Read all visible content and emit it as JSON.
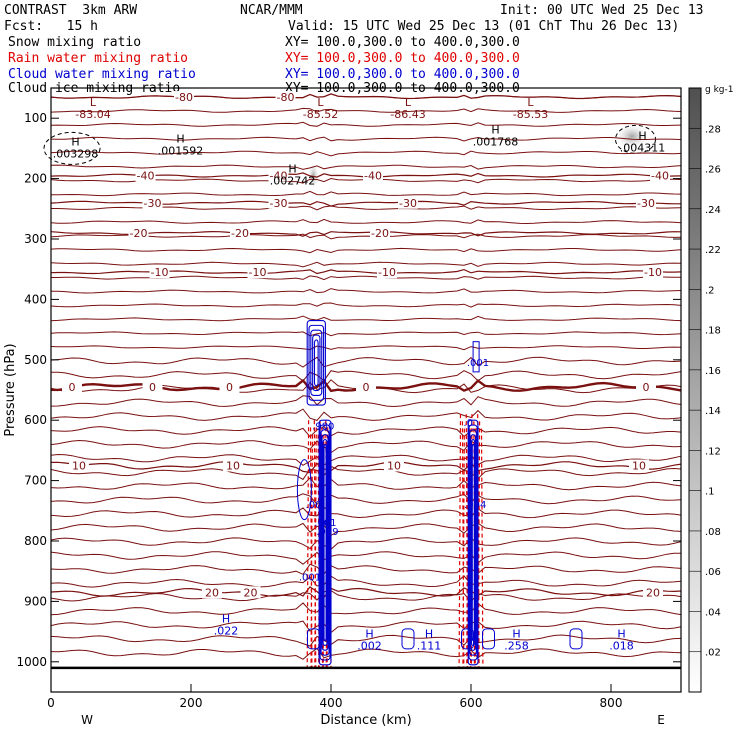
{
  "header": {
    "model": "CONTRAST  3km ARW",
    "center": "NCAR/MMM",
    "init": "Init: 00 UTC Wed 25 Dec 13",
    "fcst": "Fcst:   15 h",
    "valid": "Valid: 15 UTC Wed 25 Dec 13 (01 ChT Thu 26 Dec 13)"
  },
  "legend": [
    {
      "label": "Snow mixing ratio",
      "xy": "XY= 100.0,300.0 to 400.0,300.0",
      "color": "#000000"
    },
    {
      "label": "Rain water mixing ratio",
      "xy": "XY= 100.0,300.0 to 400.0,300.0",
      "color": "#e00000"
    },
    {
      "label": "Cloud water mixing ratio",
      "xy": "XY= 100.0,300.0 to 400.0,300.0",
      "color": "#0000d0"
    },
    {
      "label": "Cloud ice mixing ratio",
      "xy": "XY= 100.0,300.0 to 400.0,300.0",
      "color": "#000000"
    }
  ],
  "chart_data": {
    "type": "contour",
    "xlabel": "Distance (km)",
    "ylabel": "Pressure (hPa)",
    "xlim": [
      0,
      900
    ],
    "ylim": [
      50,
      1050
    ],
    "xticks": [
      0,
      200,
      400,
      600,
      800
    ],
    "yticks": [
      100,
      200,
      300,
      400,
      500,
      600,
      700,
      800,
      900,
      1000
    ],
    "x_end_labels": {
      "left": "W",
      "right": "E"
    },
    "colors": {
      "temperature": "#7a1010",
      "rain": "#e00000",
      "cloud": "#0000d0",
      "axes": "#000000"
    },
    "temperature_contours": [
      {
        "label": "-80",
        "p": 65,
        "label_x": [
          190,
          335
        ]
      },
      {
        "label": "-40",
        "p": 195,
        "label_x": [
          135,
          325,
          460,
          870
        ]
      },
      {
        "label": "-30",
        "p": 240,
        "label_x": [
          145,
          325,
          510,
          850
        ]
      },
      {
        "label": "-20",
        "p": 290,
        "label_x": [
          125,
          270,
          470
        ]
      },
      {
        "label": "-10",
        "p": 355,
        "label_x": [
          155,
          295,
          480,
          860
        ]
      },
      {
        "label": "0",
        "p": 545,
        "label_x": [
          30,
          145,
          255,
          450,
          850
        ]
      },
      {
        "label": "10",
        "p": 675,
        "label_x": [
          40,
          260,
          490,
          840
        ]
      },
      {
        "label": "20",
        "p": 885,
        "label_x": [
          230,
          285,
          860
        ]
      }
    ],
    "extrema": [
      {
        "type": "L",
        "value": "-83.04",
        "x": 60,
        "p": 80,
        "color": "temperature"
      },
      {
        "type": "L",
        "value": "-85.52",
        "x": 385,
        "p": 80,
        "color": "temperature"
      },
      {
        "type": "L",
        "value": "-86.43",
        "x": 510,
        "p": 80,
        "color": "temperature"
      },
      {
        "type": "L",
        "value": "-85.53",
        "x": 685,
        "p": 80,
        "color": "temperature"
      },
      {
        "type": "H",
        "value": ".003298",
        "x": 35,
        "p": 145,
        "color": "black"
      },
      {
        "type": "H",
        "value": ".001592",
        "x": 185,
        "p": 140,
        "color": "black"
      },
      {
        "type": "H",
        "value": ".001768",
        "x": 635,
        "p": 125,
        "color": "black"
      },
      {
        "type": "H",
        "value": ".004311",
        "x": 845,
        "p": 135,
        "color": "black"
      },
      {
        "type": "H",
        "value": ".002742",
        "x": 345,
        "p": 190,
        "color": "black"
      },
      {
        "type": "H",
        "value": ".022",
        "x": 250,
        "p": 935,
        "color": "cloud"
      },
      {
        "type": "H",
        "value": ".002",
        "x": 455,
        "p": 960,
        "color": "cloud"
      },
      {
        "type": "H",
        "value": ".111",
        "x": 540,
        "p": 960,
        "color": "cloud"
      },
      {
        "type": "H",
        "value": ".258",
        "x": 665,
        "p": 960,
        "color": "cloud"
      },
      {
        "type": "H",
        "value": ".018",
        "x": 815,
        "p": 960,
        "color": "cloud"
      }
    ],
    "cloud_labels": [
      {
        "value": ".001",
        "x": 610,
        "p": 510
      },
      {
        "value": ".980",
        "x": 389,
        "p": 615
      },
      {
        "value": ".0",
        "x": 596,
        "p": 610
      },
      {
        "value": ".00",
        "x": 375,
        "p": 745
      },
      {
        "value": ".001",
        "x": 392,
        "p": 775
      },
      {
        "value": ".999",
        "x": 395,
        "p": 790
      },
      {
        "value": ".004",
        "x": 606,
        "p": 745
      },
      {
        "value": ".001",
        "x": 370,
        "p": 865
      }
    ],
    "colorbar": {
      "unit": "g kg-1",
      "ticks": [
        ".02",
        ".04",
        ".06",
        ".08",
        ".1",
        ".12",
        ".14",
        ".16",
        ".18",
        ".2",
        ".22",
        ".24",
        ".26",
        ".28"
      ]
    }
  }
}
